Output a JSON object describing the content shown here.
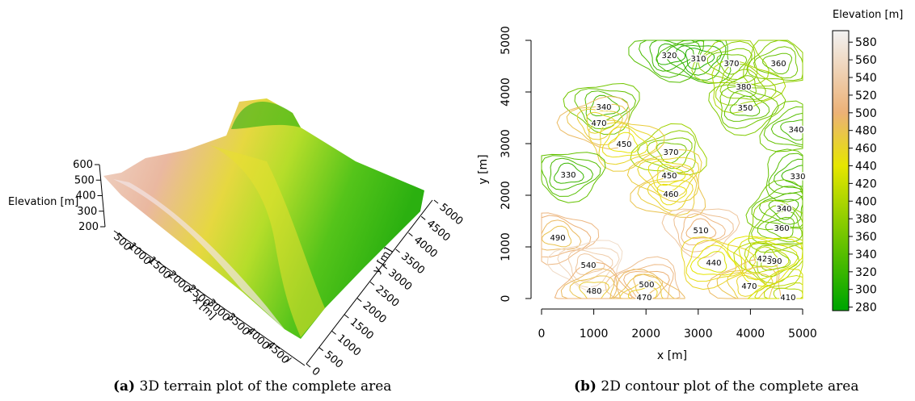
{
  "chart_data": [
    {
      "type": "surface3d",
      "label": "(a)",
      "caption": "3D terrain plot of the complete area",
      "xlabel": "x [m]",
      "ylabel": "y [m]",
      "zlabel": "Elevation [m]",
      "xlim": [
        0,
        5000
      ],
      "ylim": [
        0,
        5000
      ],
      "zlim": [
        200,
        600
      ],
      "xticks": [
        500,
        1000,
        1500,
        2000,
        2500,
        3000,
        3500,
        4000,
        4500
      ],
      "yticks": [
        0,
        500,
        1000,
        1500,
        2000,
        2500,
        3000,
        3500,
        4000,
        4500,
        5000
      ],
      "zticks": [
        200,
        300,
        400,
        500,
        600
      ]
    },
    {
      "type": "contour",
      "label": "(b)",
      "caption": "2D contour plot of the complete area",
      "xlabel": "x [m]",
      "ylabel": "y [m]",
      "colorbar_title": "Elevation [m]",
      "xlim": [
        0,
        5000
      ],
      "ylim": [
        0,
        5000
      ],
      "xticks": [
        0,
        1000,
        2000,
        3000,
        4000,
        5000
      ],
      "yticks": [
        0,
        1000,
        2000,
        3000,
        4000,
        5000
      ],
      "zlim": [
        276,
        593
      ],
      "colorbar_ticks": [
        280,
        300,
        320,
        340,
        360,
        380,
        400,
        420,
        440,
        460,
        480,
        500,
        520,
        540,
        560,
        580
      ],
      "colormap": [
        {
          "value": 280,
          "color": "#00a600"
        },
        {
          "value": 440,
          "color": "#e6e600"
        },
        {
          "value": 500,
          "color": "#ecb176"
        },
        {
          "value": 593,
          "color": "#f2f2f2"
        }
      ],
      "contour_labels": [
        {
          "x": 2446,
          "y": 4720,
          "level": 320
        },
        {
          "x": 3003,
          "y": 4656,
          "level": 310
        },
        {
          "x": 3638,
          "y": 4563,
          "level": 370
        },
        {
          "x": 4536,
          "y": 4563,
          "level": 360
        },
        {
          "x": 3870,
          "y": 4109,
          "level": 380
        },
        {
          "x": 3901,
          "y": 3703,
          "level": 350
        },
        {
          "x": 1192,
          "y": 3719,
          "level": 340
        },
        {
          "x": 1099,
          "y": 3406,
          "level": 470
        },
        {
          "x": 2477,
          "y": 2844,
          "level": 370
        },
        {
          "x": 4876,
          "y": 3281,
          "level": 340
        },
        {
          "x": 4907,
          "y": 2375,
          "level": 330
        },
        {
          "x": 1579,
          "y": 3000,
          "level": 450
        },
        {
          "x": 511,
          "y": 2406,
          "level": 330
        },
        {
          "x": 2446,
          "y": 2391,
          "level": 450
        },
        {
          "x": 2477,
          "y": 2031,
          "level": 460
        },
        {
          "x": 4644,
          "y": 1750,
          "level": 340
        },
        {
          "x": 4598,
          "y": 1375,
          "level": 360
        },
        {
          "x": 310,
          "y": 1188,
          "level": 490
        },
        {
          "x": 3050,
          "y": 1328,
          "level": 510
        },
        {
          "x": 898,
          "y": 656,
          "level": 540
        },
        {
          "x": 2012,
          "y": 281,
          "level": 500
        },
        {
          "x": 1006,
          "y": 156,
          "level": 480
        },
        {
          "x": 1966,
          "y": 31,
          "level": 470
        },
        {
          "x": 3297,
          "y": 703,
          "level": 440
        },
        {
          "x": 4273,
          "y": 781,
          "level": 420
        },
        {
          "x": 4458,
          "y": 734,
          "level": 390
        },
        {
          "x": 3978,
          "y": 250,
          "level": 470
        },
        {
          "x": 4721,
          "y": 31,
          "level": 410
        }
      ]
    }
  ]
}
